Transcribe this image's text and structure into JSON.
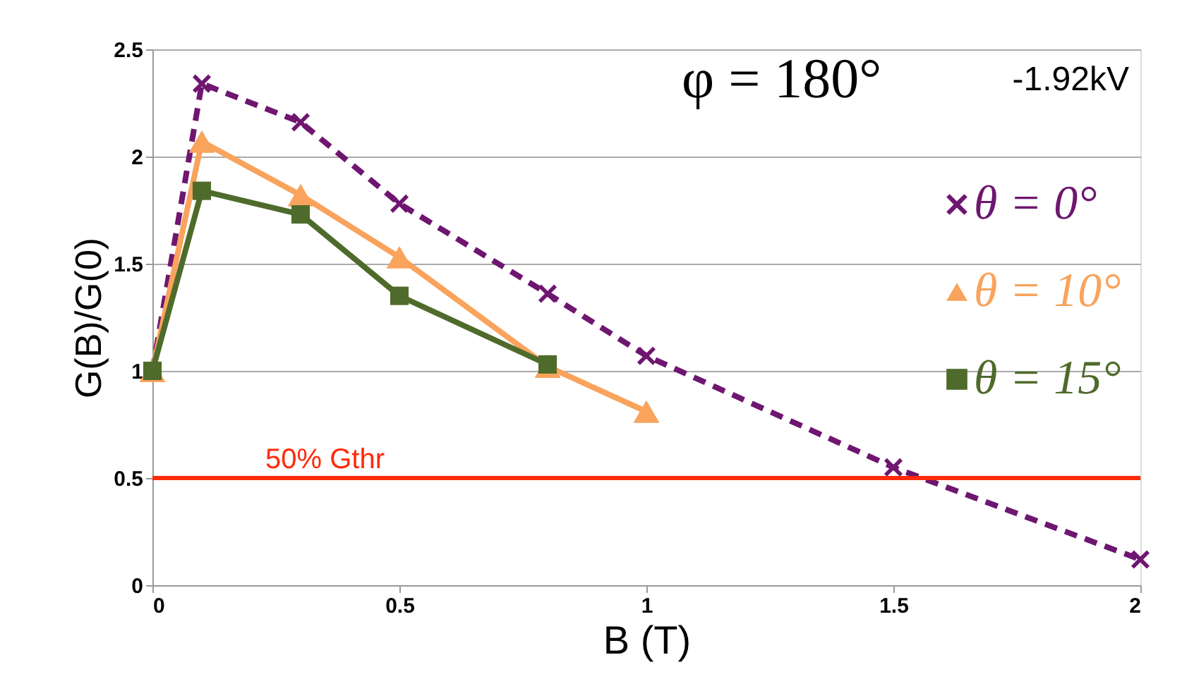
{
  "chart_data": {
    "type": "line",
    "xlabel": "B (T)",
    "ylabel": "G(B)/G(0)",
    "annotations": [
      "φ = 180°",
      "-1.92kV"
    ],
    "series": [
      {
        "name": "θ = 0°",
        "color": "#6e1670",
        "marker": "cross",
        "line_style": "dashed",
        "x": [
          0,
          0.1,
          0.3,
          0.5,
          0.8,
          1.0,
          1.5,
          2.0
        ],
        "values": [
          1.0,
          2.34,
          2.16,
          1.78,
          1.36,
          1.07,
          0.55,
          0.12
        ]
      },
      {
        "name": "θ = 10°",
        "color": "#f9a35c",
        "marker": "triangle",
        "line_style": "solid",
        "x": [
          0,
          0.1,
          0.3,
          0.5,
          0.8,
          1.0
        ],
        "values": [
          1.0,
          2.07,
          1.82,
          1.53,
          1.02,
          0.81
        ]
      },
      {
        "name": "θ = 15°",
        "color": "#4f6b2b",
        "marker": "square",
        "line_style": "solid",
        "x": [
          0,
          0.1,
          0.3,
          0.5,
          0.8
        ],
        "values": [
          1.0,
          1.84,
          1.73,
          1.35,
          1.03
        ]
      }
    ],
    "ref_lines": [
      {
        "axis": "y",
        "value": 0.5,
        "label": "50% Gthr",
        "color": "#ff2a0a",
        "line_style": "solid"
      }
    ],
    "xlim": [
      0,
      2
    ],
    "xticks": [
      0,
      0.5,
      1,
      1.5,
      2
    ],
    "ylim": [
      0,
      2.5
    ],
    "yticks": [
      0,
      0.5,
      1,
      1.5,
      2,
      2.5
    ],
    "grid": "y",
    "legend": "right"
  }
}
